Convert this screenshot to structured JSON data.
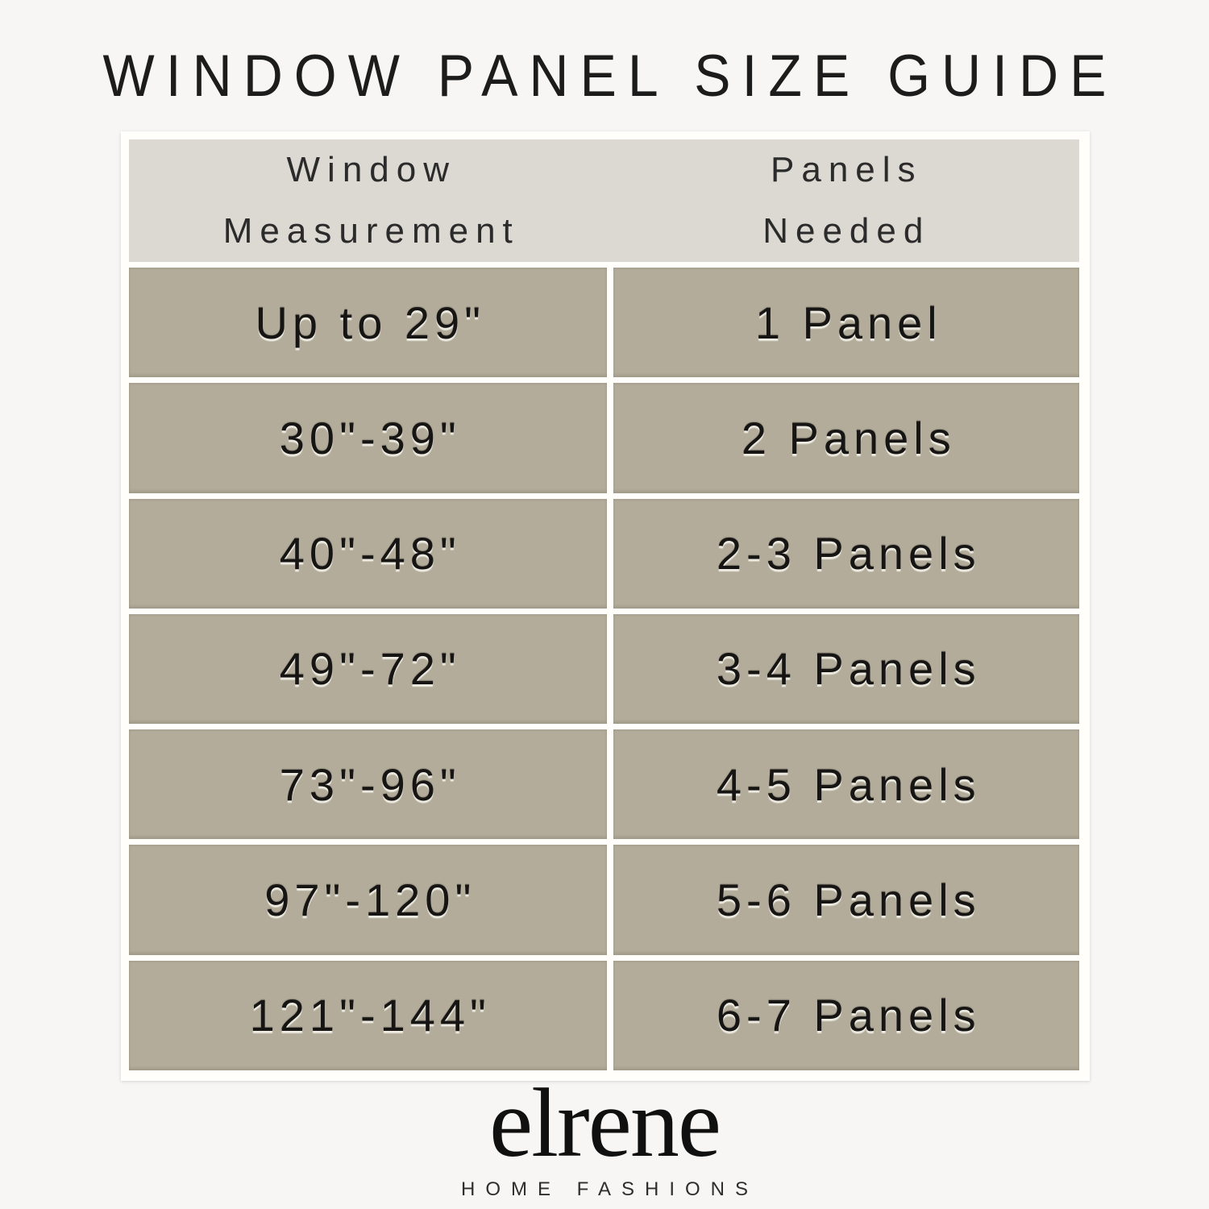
{
  "title": "WINDOW PANEL SIZE GUIDE",
  "chart_data": {
    "type": "table",
    "title": "WINDOW PANEL SIZE GUIDE",
    "columns": [
      "Window Measurement",
      "Panels Needed"
    ],
    "rows": [
      [
        "Up to 29\"",
        "1 Panel"
      ],
      [
        "30\"-39\"",
        "2 Panels"
      ],
      [
        "40\"-48\"",
        "2-3 Panels"
      ],
      [
        "49\"-72\"",
        "3-4 Panels"
      ],
      [
        "73\"-96\"",
        "4-5 Panels"
      ],
      [
        "97\"-120\"",
        "5-6 Panels"
      ],
      [
        "121\"-144\"",
        "6-7 Panels"
      ]
    ]
  },
  "header": {
    "col1": [
      "Window",
      "Measurement"
    ],
    "col2": [
      "Panels",
      "Needed"
    ]
  },
  "footer": {
    "brand": "elrene",
    "tagline": "HOME FASHIONS"
  },
  "colors": {
    "page_bg": "#f7f6f4",
    "frame_bg": "#fffefa",
    "header_bg": "#dbd9d2",
    "row_bg": "#b3ac9a",
    "text": "#171513"
  }
}
